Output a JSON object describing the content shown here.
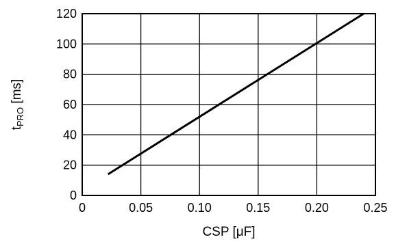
{
  "chart_data": {
    "type": "line",
    "title": "",
    "xlabel": "CSP [μF]",
    "ylabel_main": "t",
    "ylabel_sub": "PRO",
    "ylabel_rest": " [ms]",
    "xlim": [
      0,
      0.25
    ],
    "ylim": [
      0,
      120
    ],
    "grid": true,
    "x_ticks": [
      0,
      0.05,
      0.1,
      0.15,
      0.2,
      0.25
    ],
    "x_tick_labels": [
      "0",
      "0.05",
      "0.10",
      "0.15",
      "0.20",
      "0.25"
    ],
    "y_ticks": [
      0,
      20,
      40,
      60,
      80,
      100,
      120
    ],
    "y_tick_labels": [
      "0",
      "20",
      "40",
      "60",
      "80",
      "100",
      "120"
    ],
    "series": [
      {
        "x": [
          0.022,
          0.24
        ],
        "y": [
          14,
          120
        ],
        "color": "#000000"
      }
    ]
  }
}
